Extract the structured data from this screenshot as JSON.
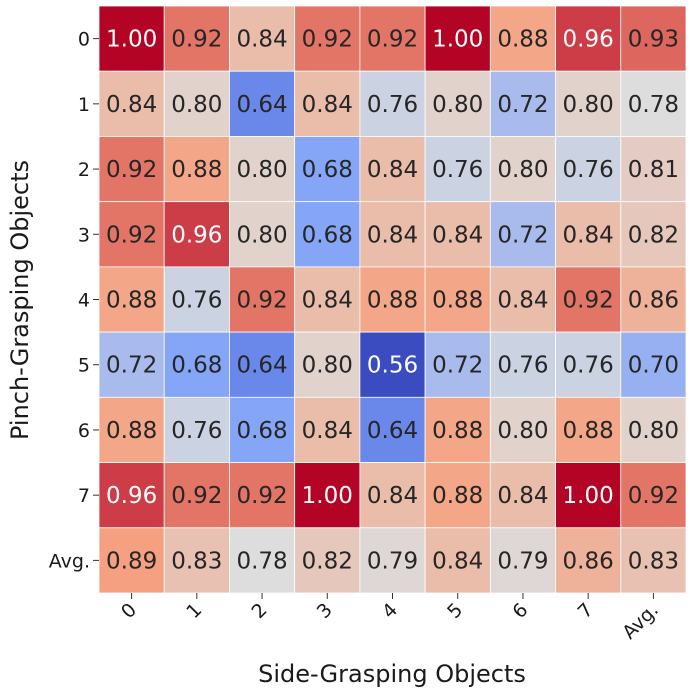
{
  "chart_data": {
    "type": "heatmap",
    "title": "",
    "xlabel": "Side-Grasping Objects",
    "ylabel": "Pinch-Grasping Objects",
    "x_categories": [
      "0",
      "1",
      "2",
      "3",
      "4",
      "5",
      "6",
      "7",
      "Avg."
    ],
    "y_categories": [
      "0",
      "1",
      "2",
      "3",
      "4",
      "5",
      "6",
      "7",
      "Avg."
    ],
    "values": [
      [
        1.0,
        0.92,
        0.84,
        0.92,
        0.92,
        1.0,
        0.88,
        0.96,
        0.93
      ],
      [
        0.84,
        0.8,
        0.64,
        0.84,
        0.76,
        0.8,
        0.72,
        0.8,
        0.78
      ],
      [
        0.92,
        0.88,
        0.8,
        0.68,
        0.84,
        0.76,
        0.8,
        0.76,
        0.81
      ],
      [
        0.92,
        0.96,
        0.8,
        0.68,
        0.84,
        0.84,
        0.72,
        0.84,
        0.82
      ],
      [
        0.88,
        0.76,
        0.92,
        0.84,
        0.88,
        0.88,
        0.84,
        0.92,
        0.86
      ],
      [
        0.72,
        0.68,
        0.64,
        0.8,
        0.56,
        0.72,
        0.76,
        0.76,
        0.7
      ],
      [
        0.88,
        0.76,
        0.68,
        0.84,
        0.64,
        0.88,
        0.8,
        0.88,
        0.8
      ],
      [
        0.96,
        0.92,
        0.92,
        1.0,
        0.84,
        0.88,
        0.84,
        1.0,
        0.92
      ],
      [
        0.89,
        0.83,
        0.78,
        0.82,
        0.79,
        0.84,
        0.79,
        0.86,
        0.83
      ]
    ],
    "value_range": [
      0.56,
      1.0
    ],
    "colormap": "coolwarm",
    "annotated": true,
    "value_format": "2 decimals",
    "colorbar": false,
    "grid": false
  }
}
